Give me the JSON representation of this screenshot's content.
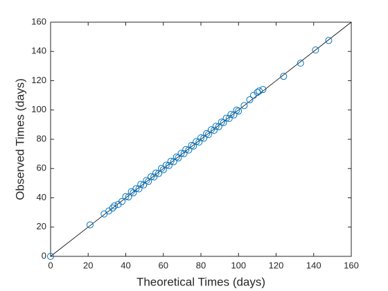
{
  "chart_data": {
    "type": "scatter",
    "xlabel": "Theoretical Times (days)",
    "ylabel": "Observed Times (days)",
    "color": "#0072bd",
    "line_color": "#000000",
    "x": [
      0,
      21,
      28.5,
      31,
      33,
      34,
      36,
      38,
      40,
      41.5,
      43,
      44,
      45.5,
      47,
      48,
      49.5,
      51,
      52,
      53.5,
      55,
      56,
      57.5,
      59,
      60,
      61.5,
      63,
      64,
      65.5,
      67,
      68,
      69.5,
      71,
      72,
      73.5,
      75,
      76,
      77.5,
      79,
      80,
      81.5,
      83,
      84,
      85.5,
      87,
      88,
      89.5,
      91,
      92,
      93.5,
      95,
      96,
      97.5,
      99,
      100,
      103,
      106,
      108,
      110,
      111,
      113,
      124,
      133,
      141,
      148
    ],
    "y": [
      0,
      21.5,
      29,
      31,
      33,
      34.5,
      35.5,
      37.5,
      40.8,
      40.6,
      44.2,
      43.4,
      46.3,
      46.1,
      49.2,
      48.8,
      51.9,
      51.1,
      54.4,
      54.2,
      56.9,
      56.6,
      60.1,
      59.2,
      62.3,
      62.1,
      65,
      64.7,
      67.9,
      67.3,
      70.4,
      70.2,
      73,
      72.6,
      75.8,
      75.3,
      78.4,
      78.1,
      81,
      80.7,
      83.9,
      83.2,
      86.5,
      86.1,
      88.9,
      88.6,
      91.8,
      91.3,
      94.4,
      94.2,
      97,
      96.6,
      99.9,
      99.3,
      103,
      107,
      110,
      112,
      113,
      114,
      123,
      132,
      141,
      147.5
    ],
    "reference_line": {
      "x": [
        0,
        160
      ],
      "y": [
        0,
        160
      ]
    },
    "xlim": [
      0,
      160
    ],
    "ylim": [
      0,
      160
    ],
    "xticks": [
      0,
      20,
      40,
      60,
      80,
      100,
      120,
      140,
      160
    ],
    "yticks": [
      0,
      20,
      40,
      60,
      80,
      100,
      120,
      140,
      160
    ]
  }
}
